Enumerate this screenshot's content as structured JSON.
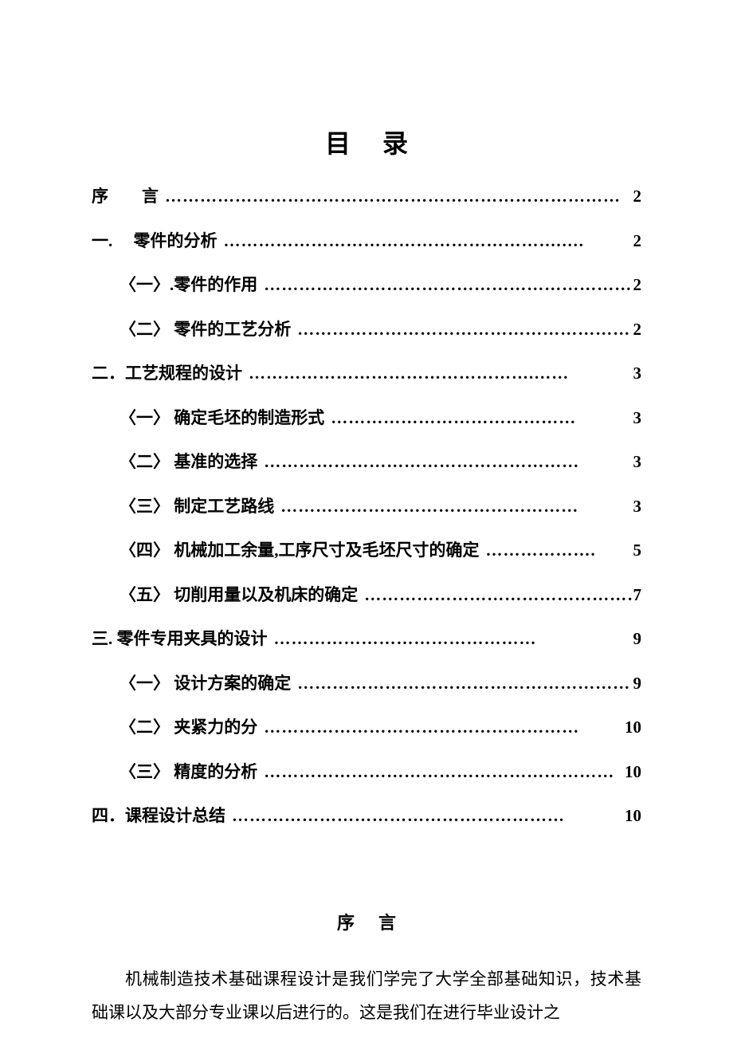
{
  "document": {
    "title": "目录",
    "background_color": "#ffffff",
    "text_color": "#000000",
    "font_family": "SimSun",
    "title_fontsize": 32,
    "entry_fontsize": 21
  },
  "toc": {
    "entries": [
      {
        "level": 1,
        "label": "序　　言",
        "dots": "……………………………………………………………………",
        "page": "2"
      },
      {
        "level": 1,
        "label": "一.　 零件的分析",
        "dots": "………………………………………………….….",
        "page": "2"
      },
      {
        "level": 2,
        "label": "〈一〉.零件的作用",
        "dots": "…………………………………………………………",
        "page": "2"
      },
      {
        "level": 2,
        "label": "〈二〉 零件的工艺分析",
        "dots": "……………………………………………………",
        "page": "2"
      },
      {
        "level": 1,
        "label": "二．工艺规程的设计",
        "dots": "………………………………………….……",
        "page": "3"
      },
      {
        "level": 2,
        "label": "〈一〉  确定毛坯的制造形式",
        "dots": " ……………………………………",
        "page": "3"
      },
      {
        "level": 2,
        "label": "〈二〉  基准的选择",
        "dots": "  ………………………………………………",
        "page": "3"
      },
      {
        "level": 2,
        "label": "〈三〉  制定工艺路线",
        "dots": "   ……………………………………………",
        "page": "3"
      },
      {
        "level": 2,
        "label": "〈四〉  机械加工余量,工序尺寸及毛坯尺寸的确定",
        "dots": "……………….",
        "page": "5"
      },
      {
        "level": 2,
        "label": "〈五〉 切削用量以及机床的确定",
        "dots": "…………………………………………",
        "page": "7"
      },
      {
        "level": 1,
        "label": "三.  零件专用夹具的设计",
        "dots": "………………………………………",
        "page": "9"
      },
      {
        "level": 2,
        "label": "〈一〉 设计方案的确定",
        "dots": "……………………………………………………",
        "page": "9"
      },
      {
        "level": 2,
        "label": "〈二〉  夹紧力的分",
        "dots": "………………………………………………",
        "page": "10"
      },
      {
        "level": 2,
        "label": "〈三〉  精度的分析",
        "dots": "……………………………………………………",
        "page": "10"
      },
      {
        "level": 1,
        "label": "四．课程设计总结",
        "dots": "  …………………………………………………",
        "page": "10"
      }
    ]
  },
  "preface": {
    "title": "序言",
    "body": "机械制造技术基础课程设计是我们学完了大学全部基础知识，技术基础课以及大部分专业课以后进行的。这是我们在进行毕业设计之"
  }
}
